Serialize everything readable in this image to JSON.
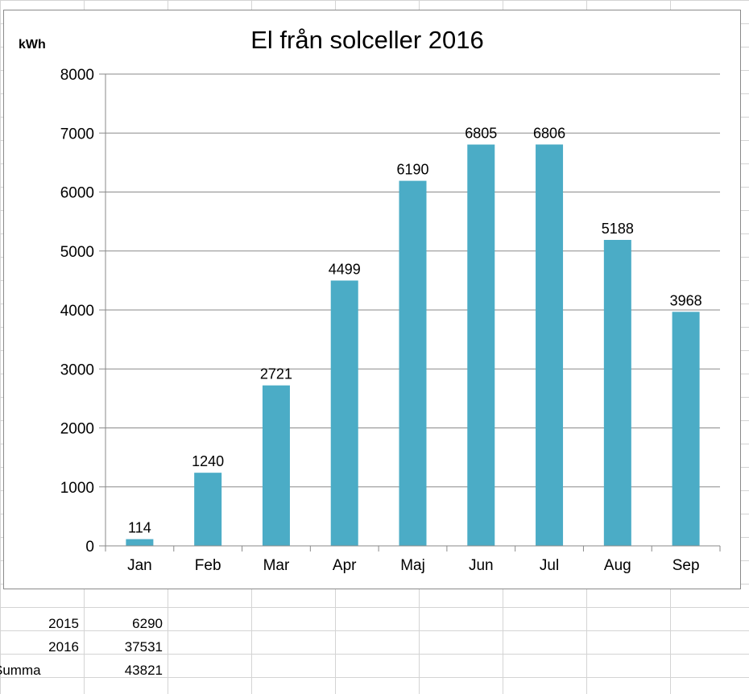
{
  "chart_data": {
    "type": "bar",
    "title": "El från solceller 2016",
    "ylabel": "kWh",
    "xlabel": "",
    "categories": [
      "Jan",
      "Feb",
      "Mar",
      "Apr",
      "Maj",
      "Jun",
      "Jul",
      "Aug",
      "Sep"
    ],
    "values": [
      114,
      1240,
      2721,
      4499,
      6190,
      6805,
      6806,
      5188,
      3968
    ],
    "ylim": [
      0,
      8000
    ],
    "yticks": [
      0,
      1000,
      2000,
      3000,
      4000,
      5000,
      6000,
      7000,
      8000
    ],
    "grid": true,
    "legend": "none",
    "bar_color": "#4bacc6"
  },
  "summary": {
    "rows": [
      {
        "label": "2015",
        "value": "6290"
      },
      {
        "label": "2016",
        "value": "37531"
      },
      {
        "label": "Summa",
        "value": "43821"
      }
    ]
  }
}
